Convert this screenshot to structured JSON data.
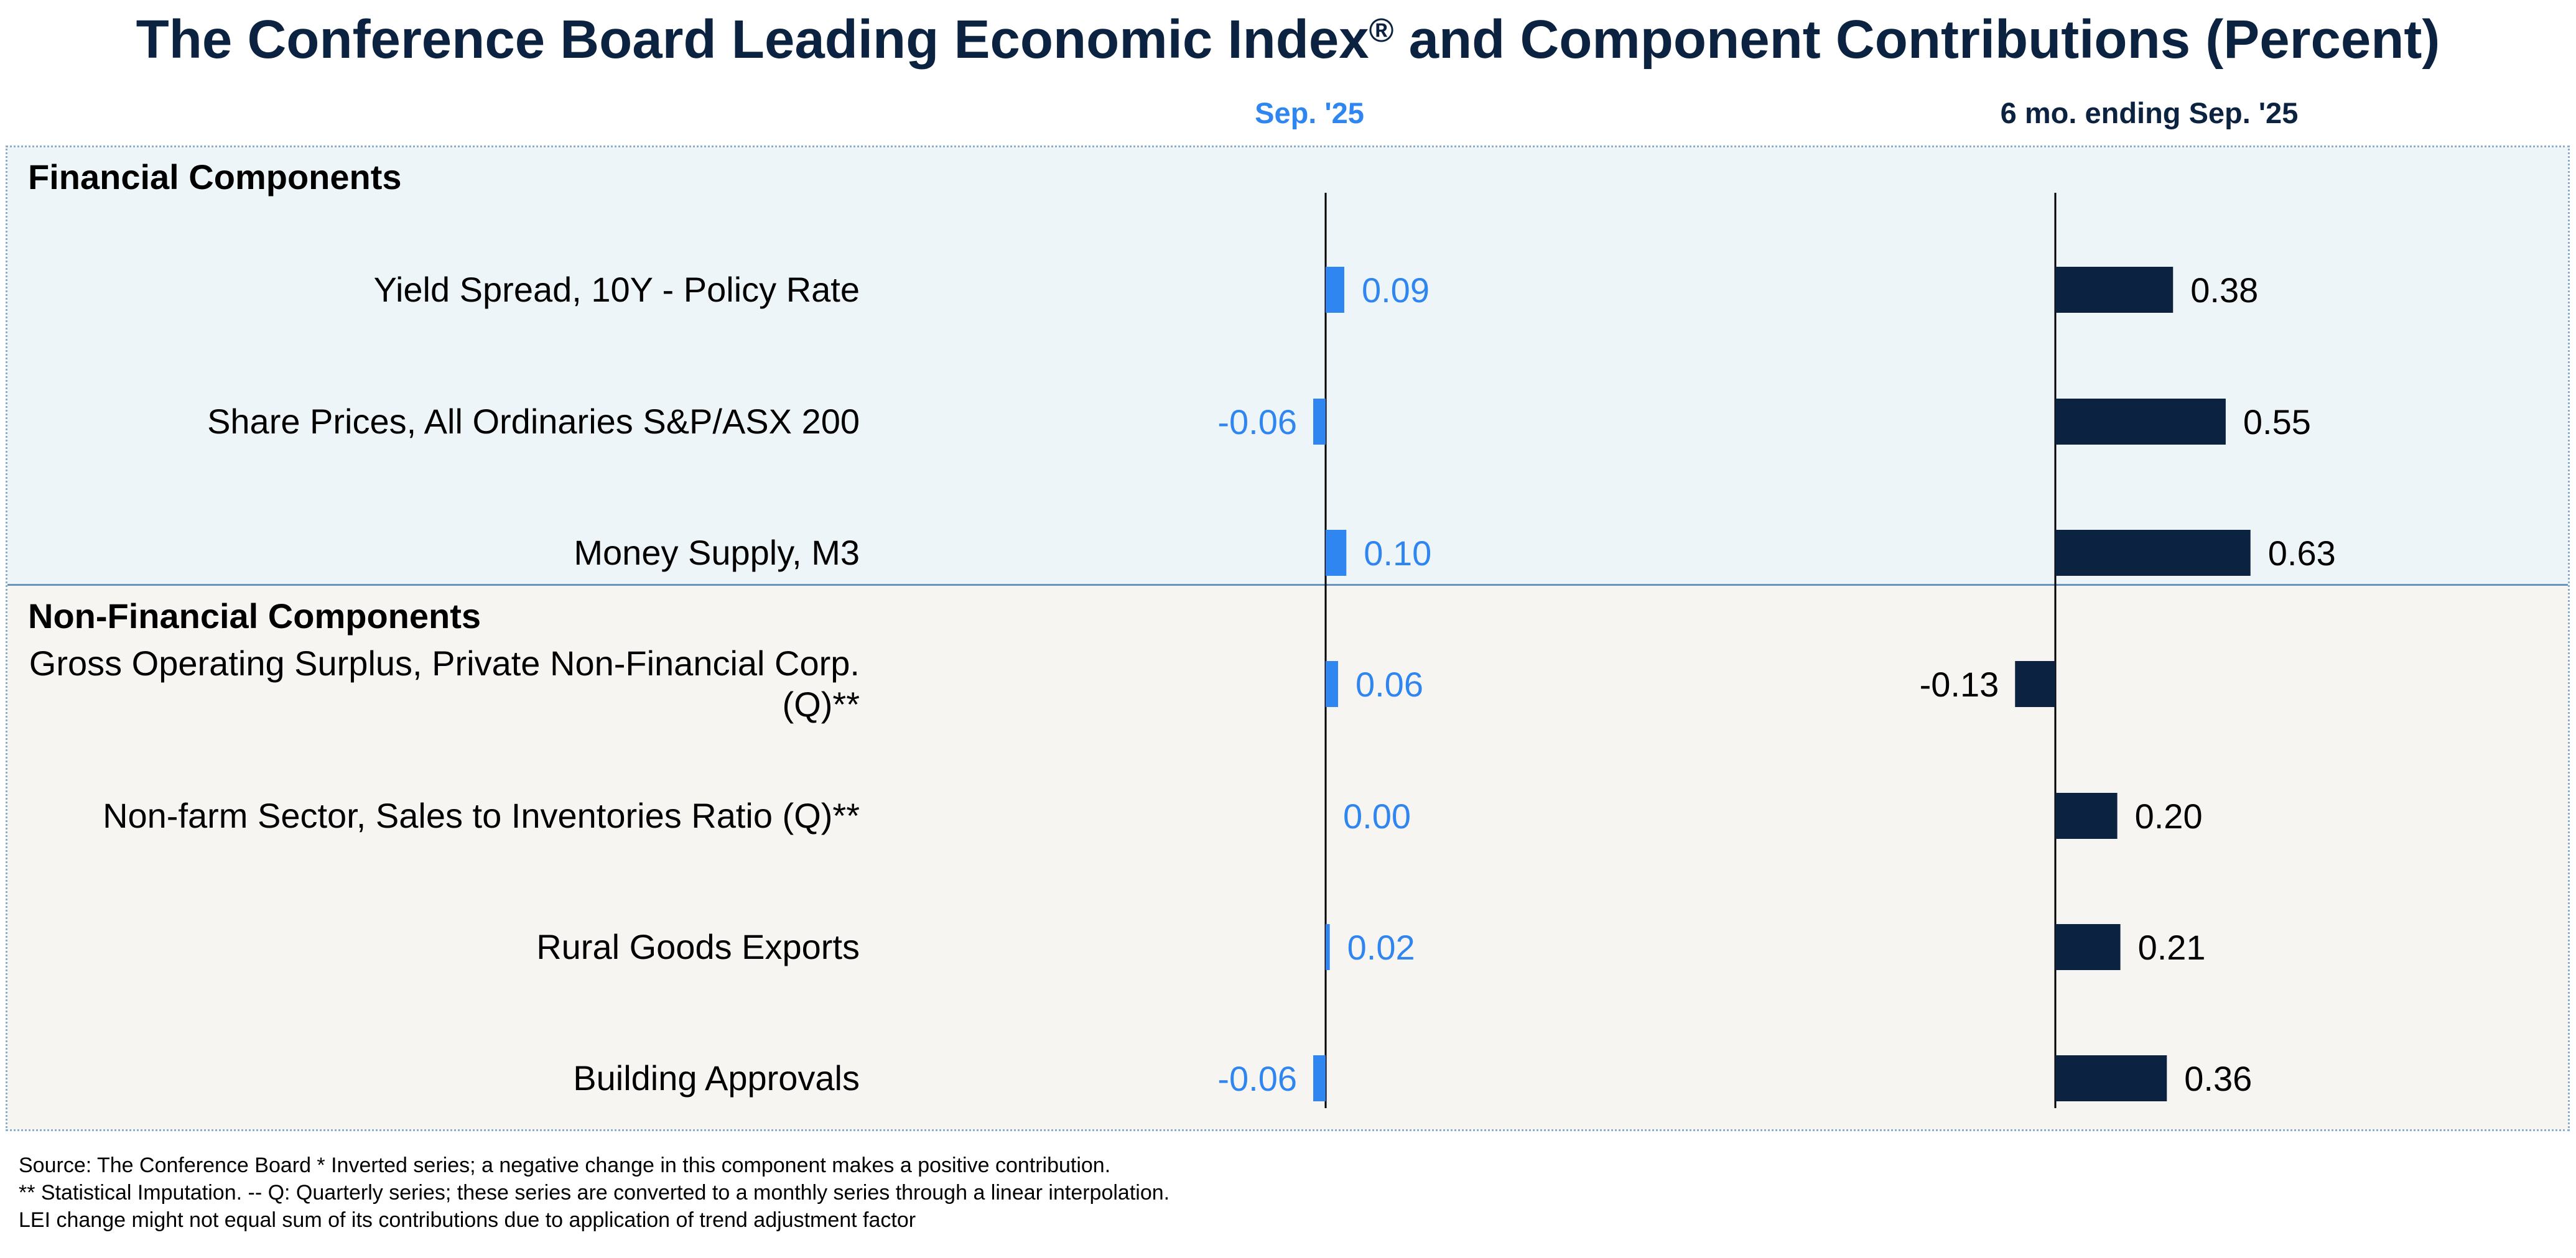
{
  "title": "The Conference Board Leading Economic Index",
  "title_mark": "®",
  "title_suffix": " and Component Contributions (Percent)",
  "columns": {
    "monthly_header": "Sep. '25",
    "six_month_header": "6 mo. ending Sep. '25"
  },
  "sections": {
    "financial": "Financial Components",
    "non_financial": "Non-Financial Components"
  },
  "colors": {
    "monthly_bar": "#2f86f0",
    "six_month_bar": "#0b2341",
    "financial_band": "#eef5f8",
    "non_financial_band": "#f7f5f2",
    "title": "#0b2341"
  },
  "footnotes": [
    "Source: The Conference Board *  Inverted series; a negative change in this component makes a positive contribution.",
    "**  Statistical Imputation. -- Q: Quarterly series; these series are converted to a monthly series through a linear interpolation.",
    "LEI change might not equal sum of its contributions due to application of trend adjustment factor"
  ],
  "chart_data": {
    "type": "bar",
    "orientation": "horizontal",
    "categories": [
      "Yield Spread, 10Y - Policy Rate",
      "Share Prices, All Ordinaries S&P/ASX 200",
      "Money Supply, M3",
      "Gross Operating Surplus, Private Non-Financial Corp. (Q)**",
      "Non-farm Sector, Sales to Inventories Ratio (Q)**",
      "Rural Goods Exports",
      "Building Approvals"
    ],
    "category_groups": [
      "Financial Components",
      "Financial Components",
      "Financial Components",
      "Non-Financial Components",
      "Non-Financial Components",
      "Non-Financial Components",
      "Non-Financial Components"
    ],
    "series": [
      {
        "name": "Sep. '25",
        "values": [
          0.09,
          -0.06,
          0.1,
          0.06,
          0.0,
          0.02,
          -0.06
        ],
        "labels": [
          "0.09",
          "-0.06",
          "0.10",
          "0.06",
          "0.00",
          "0.02",
          "-0.06"
        ]
      },
      {
        "name": "6 mo. ending Sep. '25",
        "values": [
          0.38,
          0.55,
          0.63,
          -0.13,
          0.2,
          0.21,
          0.36
        ],
        "labels": [
          "0.38",
          "0.55",
          "0.63",
          "-0.13",
          "0.20",
          "0.21",
          "0.36"
        ]
      }
    ]
  }
}
